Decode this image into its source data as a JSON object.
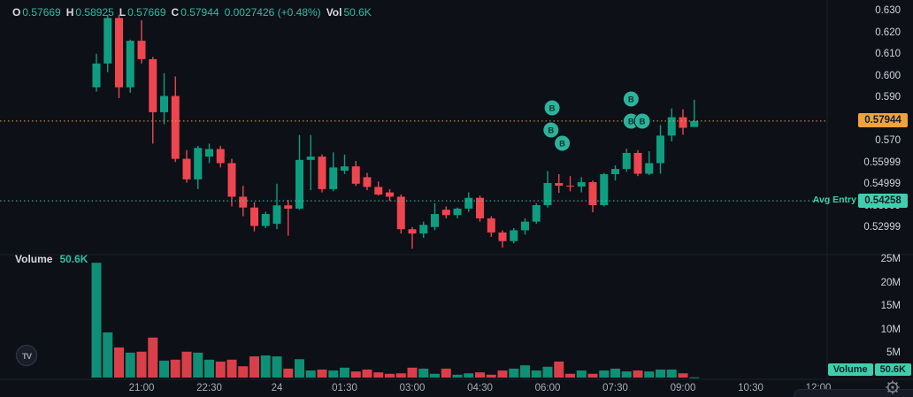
{
  "colors": {
    "background": "#0d1017",
    "candle_up": "#0f9d80",
    "candle_down": "#ef454f",
    "current_price_accent": "#f0a33a",
    "avg_entry_accent": "#3ecfad",
    "legend_value": "#2ebda5",
    "axis_text": "#cfd3dc",
    "time_text": "#a7adb9",
    "buy_marker": "#2cb39c"
  },
  "legend": {
    "open_label": "O",
    "open": "0.57669",
    "high_label": "H",
    "high": "0.58925",
    "low_label": "L",
    "low": "0.57669",
    "close_label": "C",
    "close": "0.57944",
    "change": "0.0027426 (+0.48%)",
    "volume_label": "Vol",
    "volume": "50.6K"
  },
  "price_axis": {
    "ticks": [
      {
        "label": "0.630",
        "value": 0.63
      },
      {
        "label": "0.620",
        "value": 0.62
      },
      {
        "label": "0.610",
        "value": 0.61
      },
      {
        "label": "0.600",
        "value": 0.6
      },
      {
        "label": "0.590",
        "value": 0.59
      },
      {
        "label": "0.570",
        "value": 0.57
      },
      {
        "label": "0.55999",
        "value": 0.55999
      },
      {
        "label": "0.54999",
        "value": 0.54999
      },
      {
        "label": "0.53999",
        "value": 0.53999
      },
      {
        "label": "0.52999",
        "value": 0.52999
      }
    ],
    "current_price_badge": {
      "label": "0.57944",
      "value": 0.57944
    },
    "avg_entry": {
      "label": "Avg Entry",
      "badge": "0.54258",
      "value": 0.54258
    }
  },
  "volume_pane": {
    "title": "Volume",
    "value": "50.6K",
    "ticks": [
      {
        "label": "25M",
        "value": 25
      },
      {
        "label": "20M",
        "value": 20
      },
      {
        "label": "15M",
        "value": 15
      },
      {
        "label": "10M",
        "value": 10
      },
      {
        "label": "5M",
        "value": 5
      }
    ],
    "badge": {
      "label": "Volume",
      "value": "50.6K"
    }
  },
  "time_axis": {
    "ticks": [
      {
        "label": "21:00",
        "slot": 4
      },
      {
        "label": "22:30",
        "slot": 10
      },
      {
        "label": "24",
        "slot": 16
      },
      {
        "label": "01:30",
        "slot": 22
      },
      {
        "label": "03:00",
        "slot": 28
      },
      {
        "label": "04:30",
        "slot": 34
      },
      {
        "label": "06:00",
        "slot": 40
      },
      {
        "label": "07:30",
        "slot": 46
      },
      {
        "label": "09:00",
        "slot": 52
      },
      {
        "label": "10:30",
        "slot": 58
      },
      {
        "label": "12:00",
        "slot": 64
      }
    ]
  },
  "markers": {
    "label": "B",
    "buys": [
      {
        "slot": 40.4,
        "price": 0.5855
      },
      {
        "slot": 40.3,
        "price": 0.5753
      },
      {
        "slot": 41.3,
        "price": 0.5692
      },
      {
        "slot": 47.4,
        "price": 0.5896
      },
      {
        "slot": 47.4,
        "price": 0.5794
      },
      {
        "slot": 48.4,
        "price": 0.5794
      }
    ]
  },
  "logo_text": "TV",
  "chart_data": {
    "type": "candlestick",
    "interval": "15m",
    "title": "",
    "ylabel": "price",
    "ylim": [
      0.52,
      0.632
    ],
    "volume_ylim_millions": [
      0,
      27
    ],
    "legend_position": "top-left",
    "grid": true,
    "columns": [
      "time",
      "open",
      "high",
      "low",
      "close",
      "volume_millions"
    ],
    "candles": [
      [
        "20:00",
        0.595,
        0.6105,
        0.593,
        0.606,
        24.4
      ],
      [
        "20:15",
        0.606,
        0.6285,
        0.602,
        0.627,
        9.6
      ],
      [
        "20:30",
        0.627,
        0.6285,
        0.59,
        0.595,
        6.4
      ],
      [
        "20:45",
        0.595,
        0.617,
        0.5925,
        0.6165,
        5.3
      ],
      [
        "21:00",
        0.6165,
        0.626,
        0.606,
        0.608,
        5.5
      ],
      [
        "21:15",
        0.608,
        0.609,
        0.569,
        0.5835,
        8.5
      ],
      [
        "21:30",
        0.5835,
        0.6015,
        0.578,
        0.591,
        3.6
      ],
      [
        "21:45",
        0.591,
        0.6,
        0.5605,
        0.562,
        3.8
      ],
      [
        "22:00",
        0.562,
        0.566,
        0.551,
        0.5525,
        5.5
      ],
      [
        "22:15",
        0.5525,
        0.568,
        0.548,
        0.567,
        5.3
      ],
      [
        "22:30",
        0.563,
        0.569,
        0.56,
        0.5665,
        3.8
      ],
      [
        "22:45",
        0.5665,
        0.568,
        0.558,
        0.56,
        3.4
      ],
      [
        "23:00",
        0.56,
        0.562,
        0.54,
        0.5445,
        3.8
      ],
      [
        "23:15",
        0.5445,
        0.5495,
        0.5355,
        0.5395,
        2.4
      ],
      [
        "23:30",
        0.5395,
        0.542,
        0.5285,
        0.531,
        4.5
      ],
      [
        "23:45",
        0.531,
        0.5375,
        0.53,
        0.5365,
        4.7
      ],
      [
        "24:00",
        0.532,
        0.5505,
        0.5295,
        0.5405,
        4.5
      ],
      [
        "00:15",
        0.5405,
        0.543,
        0.5265,
        0.539,
        1.9
      ],
      [
        "00:30",
        0.539,
        0.573,
        0.5385,
        0.5615,
        3.9
      ],
      [
        "00:45",
        0.5615,
        0.573,
        0.5475,
        0.563,
        1.5
      ],
      [
        "01:00",
        0.563,
        0.564,
        0.5465,
        0.548,
        1.7
      ],
      [
        "01:15",
        0.548,
        0.565,
        0.547,
        0.558,
        1.5
      ],
      [
        "01:30",
        0.5565,
        0.564,
        0.555,
        0.5585,
        2.1
      ],
      [
        "01:45",
        0.5585,
        0.561,
        0.5495,
        0.5505,
        1.3
      ],
      [
        "02:00",
        0.5535,
        0.5555,
        0.5475,
        0.549,
        1.7
      ],
      [
        "02:15",
        0.549,
        0.5515,
        0.545,
        0.5455,
        1.1
      ],
      [
        "02:30",
        0.5465,
        0.548,
        0.5425,
        0.5445,
        0.8
      ],
      [
        "02:45",
        0.5445,
        0.5455,
        0.5275,
        0.5295,
        0.9
      ],
      [
        "03:00",
        0.5295,
        0.5305,
        0.5205,
        0.5275,
        2.1
      ],
      [
        "03:15",
        0.5275,
        0.533,
        0.5255,
        0.5315,
        1.9
      ],
      [
        "03:30",
        0.5305,
        0.5415,
        0.529,
        0.5365,
        0.8
      ],
      [
        "03:45",
        0.5385,
        0.54,
        0.5345,
        0.536,
        1.9
      ],
      [
        "04:00",
        0.536,
        0.5395,
        0.5345,
        0.539,
        0.6
      ],
      [
        "04:15",
        0.539,
        0.5465,
        0.5375,
        0.544,
        0.9
      ],
      [
        "04:30",
        0.544,
        0.545,
        0.533,
        0.5345,
        1.1
      ],
      [
        "04:45",
        0.5345,
        0.5355,
        0.526,
        0.528,
        0.6
      ],
      [
        "05:00",
        0.528,
        0.529,
        0.521,
        0.524,
        1.5
      ],
      [
        "05:15",
        0.524,
        0.53,
        0.523,
        0.529,
        1.9
      ],
      [
        "05:30",
        0.529,
        0.5345,
        0.527,
        0.533,
        2.6
      ],
      [
        "05:45",
        0.533,
        0.5415,
        0.532,
        0.5406,
        1.5
      ],
      [
        "06:00",
        0.5406,
        0.5563,
        0.5395,
        0.5508,
        2.3
      ],
      [
        "06:15",
        0.5508,
        0.5549,
        0.5463,
        0.5496,
        3.4
      ],
      [
        "06:30",
        0.5496,
        0.554,
        0.547,
        0.5492,
        0.8
      ],
      [
        "06:45",
        0.5492,
        0.5535,
        0.5465,
        0.5512,
        1.5
      ],
      [
        "07:00",
        0.5512,
        0.552,
        0.5373,
        0.5406,
        0.8
      ],
      [
        "07:15",
        0.5406,
        0.5555,
        0.54,
        0.5549,
        1.5
      ],
      [
        "07:30",
        0.5549,
        0.559,
        0.552,
        0.5573,
        1.9
      ],
      [
        "07:45",
        0.5573,
        0.5667,
        0.556,
        0.5647,
        1.3
      ],
      [
        "08:00",
        0.5647,
        0.566,
        0.554,
        0.5551,
        1.5
      ],
      [
        "08:15",
        0.5551,
        0.5655,
        0.5545,
        0.56,
        1.3
      ],
      [
        "08:30",
        0.56,
        0.5776,
        0.5551,
        0.5727,
        1.7
      ],
      [
        "08:45",
        0.5727,
        0.5853,
        0.57,
        0.5812,
        1.7
      ],
      [
        "09:00",
        0.5812,
        0.5849,
        0.5731,
        0.5763,
        0.9
      ],
      [
        "09:15",
        0.57669,
        0.58925,
        0.57669,
        0.57944,
        0.05
      ]
    ]
  }
}
